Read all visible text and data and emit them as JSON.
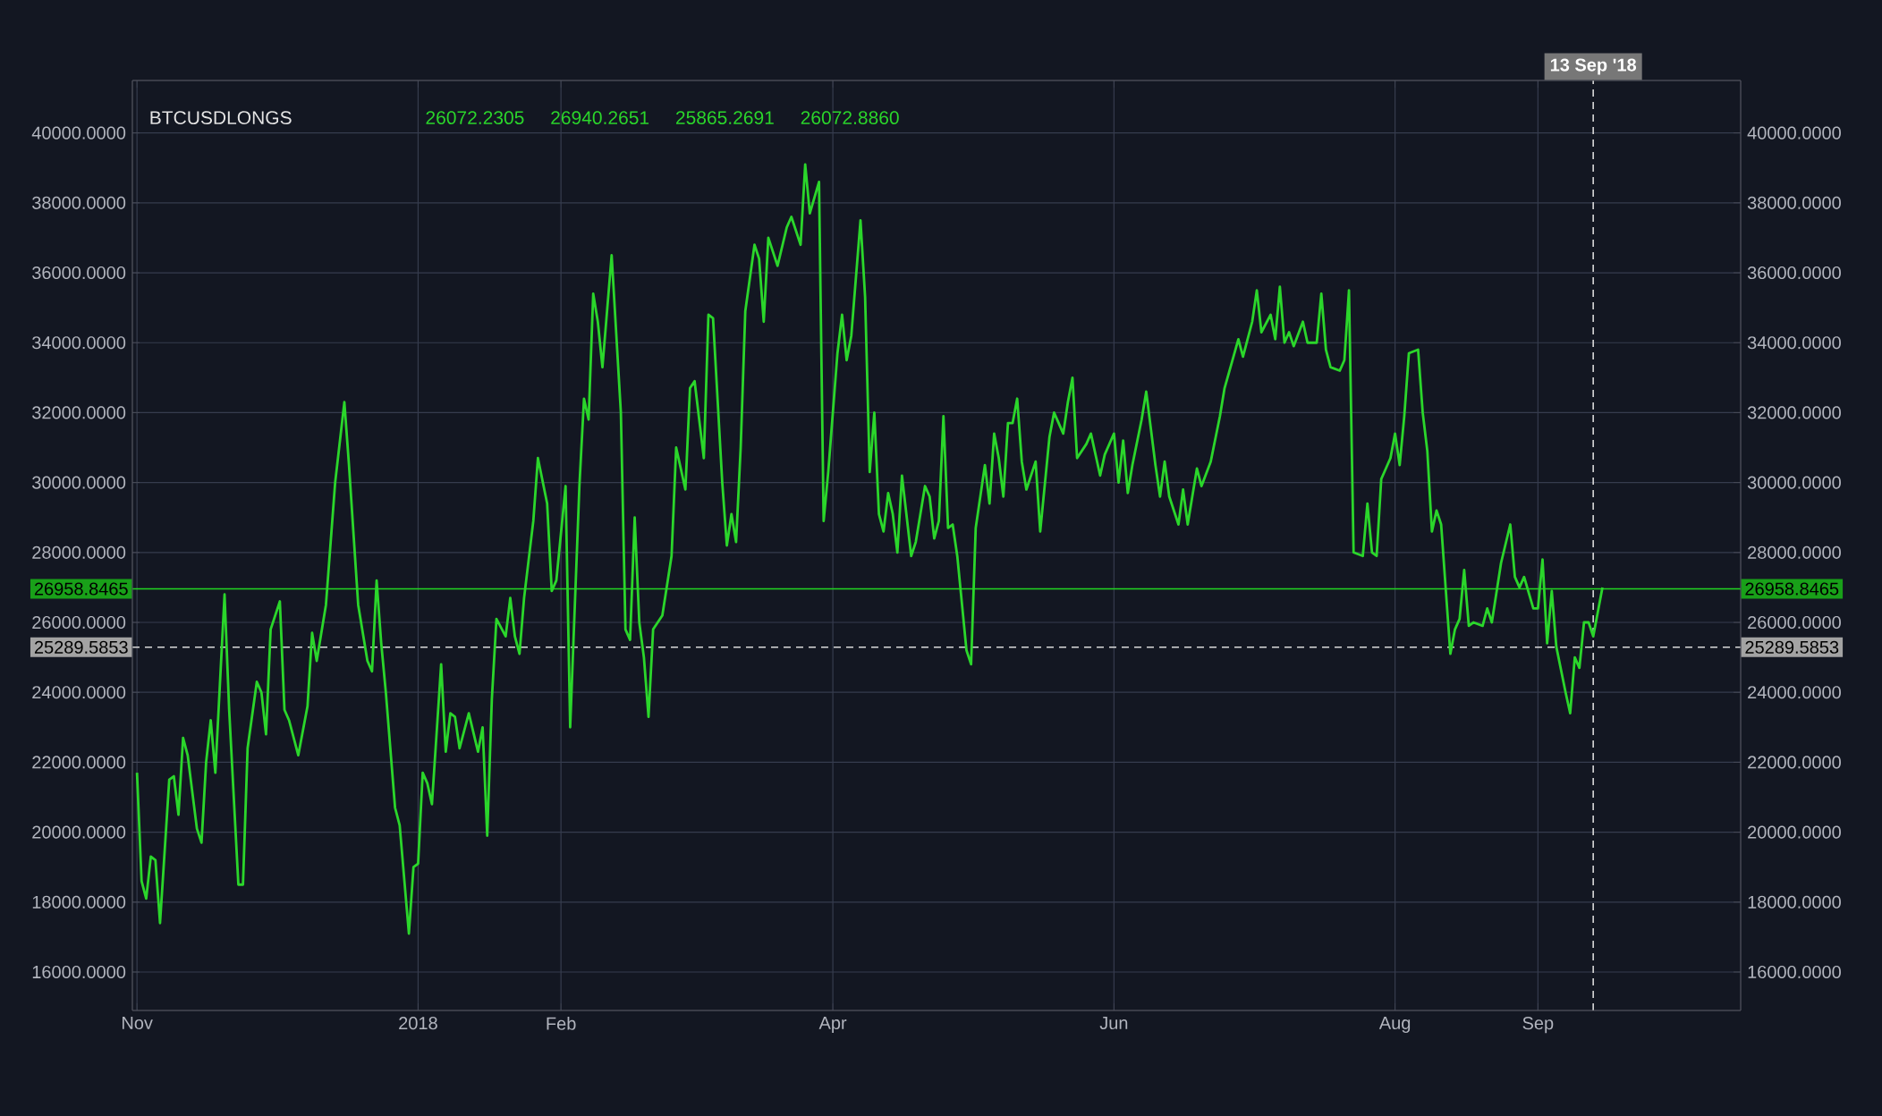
{
  "chart_data": {
    "type": "line",
    "title": "BTCUSDLONGS",
    "annotations": [
      "26072.2305",
      "26940.2651",
      "25865.2691",
      "26072.8860"
    ],
    "xlim": [
      "2017-10-31",
      "2018-10-15"
    ],
    "xticks": [
      {
        "value": "2017-11-01",
        "label": "Nov"
      },
      {
        "value": "2018-01-01",
        "label": "2018"
      },
      {
        "value": "2018-02-01",
        "label": "Feb"
      },
      {
        "value": "2018-04-01",
        "label": "Apr"
      },
      {
        "value": "2018-06-01",
        "label": "Jun"
      },
      {
        "value": "2018-08-01",
        "label": "Aug"
      },
      {
        "value": "2018-09-01",
        "label": "Sep"
      }
    ],
    "ylim": [
      14900,
      41500
    ],
    "yticks": [
      {
        "value": 16000,
        "label": "16000.0000"
      },
      {
        "value": 18000,
        "label": "18000.0000"
      },
      {
        "value": 20000,
        "label": "20000.0000"
      },
      {
        "value": 22000,
        "label": "22000.0000"
      },
      {
        "value": 24000,
        "label": "24000.0000"
      },
      {
        "value": 26000,
        "label": "26000.0000"
      },
      {
        "value": 28000,
        "label": "28000.0000"
      },
      {
        "value": 30000,
        "label": "30000.0000"
      },
      {
        "value": 32000,
        "label": "32000.0000"
      },
      {
        "value": 34000,
        "label": "34000.0000"
      },
      {
        "value": 36000,
        "label": "36000.0000"
      },
      {
        "value": 38000,
        "label": "38000.0000"
      },
      {
        "value": 40000,
        "label": "40000.0000"
      }
    ],
    "y2lim": [
      14900,
      41500
    ],
    "y2ticks": [
      {
        "value": 16000,
        "label": "16000.0000"
      },
      {
        "value": 18000,
        "label": "18000.0000"
      },
      {
        "value": 20000,
        "label": "20000.0000"
      },
      {
        "value": 22000,
        "label": "22000.0000"
      },
      {
        "value": 24000,
        "label": "24000.0000"
      },
      {
        "value": 26000,
        "label": "26000.0000"
      },
      {
        "value": 28000,
        "label": "28000.0000"
      },
      {
        "value": 30000,
        "label": "30000.0000"
      },
      {
        "value": 32000,
        "label": "32000.0000"
      },
      {
        "value": 34000,
        "label": "34000.0000"
      },
      {
        "value": 36000,
        "label": "36000.0000"
      },
      {
        "value": 38000,
        "label": "38000.0000"
      },
      {
        "value": 40000,
        "label": "40000.0000"
      }
    ],
    "grid": true,
    "ref_lines": [
      {
        "axis": "y",
        "value": 26958.8465,
        "label": "26958.8465",
        "color": "#22d622",
        "line_style": "solid"
      },
      {
        "axis": "y",
        "value": 25289.5853,
        "label": "25289.5853",
        "color": "#d9d9d9",
        "line_style": "dashed"
      },
      {
        "axis": "x",
        "value": "2018-09-13",
        "label": "13 Sep '18",
        "color": "#d9d9d9",
        "line_style": "dashed"
      }
    ],
    "series": [
      {
        "color": "#2bd62b",
        "x": [
          "2017-11-01",
          "2017-11-02",
          "2017-11-03",
          "2017-11-04",
          "2017-11-05",
          "2017-11-06",
          "2017-11-08",
          "2017-11-09",
          "2017-11-10",
          "2017-11-11",
          "2017-11-12",
          "2017-11-14",
          "2017-11-15",
          "2017-11-16",
          "2017-11-17",
          "2017-11-18",
          "2017-11-20",
          "2017-11-21",
          "2017-11-23",
          "2017-11-24",
          "2017-11-25",
          "2017-11-27",
          "2017-11-28",
          "2017-11-29",
          "2017-11-30",
          "2017-12-02",
          "2017-12-03",
          "2017-12-04",
          "2017-12-06",
          "2017-12-08",
          "2017-12-09",
          "2017-12-10",
          "2017-12-12",
          "2017-12-14",
          "2017-12-16",
          "2017-12-17",
          "2017-12-19",
          "2017-12-21",
          "2017-12-22",
          "2017-12-23",
          "2017-12-24",
          "2017-12-25",
          "2017-12-27",
          "2017-12-28",
          "2017-12-30",
          "2017-12-31",
          "2018-01-01",
          "2018-01-02",
          "2018-01-03",
          "2018-01-04",
          "2018-01-06",
          "2018-01-07",
          "2018-01-08",
          "2018-01-09",
          "2018-01-10",
          "2018-01-12",
          "2018-01-14",
          "2018-01-15",
          "2018-01-16",
          "2018-01-17",
          "2018-01-18",
          "2018-01-20",
          "2018-01-21",
          "2018-01-22",
          "2018-01-23",
          "2018-01-24",
          "2018-01-26",
          "2018-01-27",
          "2018-01-29",
          "2018-01-30",
          "2018-01-31",
          "2018-02-02",
          "2018-02-03",
          "2018-02-05",
          "2018-02-06",
          "2018-02-07",
          "2018-02-08",
          "2018-02-09",
          "2018-02-10",
          "2018-02-12",
          "2018-02-14",
          "2018-02-15",
          "2018-02-16",
          "2018-02-17",
          "2018-02-18",
          "2018-02-19",
          "2018-02-20",
          "2018-02-21",
          "2018-02-23",
          "2018-02-25",
          "2018-02-26",
          "2018-02-28",
          "2018-03-01",
          "2018-03-02",
          "2018-03-04",
          "2018-03-05",
          "2018-03-06",
          "2018-03-08",
          "2018-03-09",
          "2018-03-10",
          "2018-03-11",
          "2018-03-12",
          "2018-03-13",
          "2018-03-15",
          "2018-03-16",
          "2018-03-17",
          "2018-03-18",
          "2018-03-20",
          "2018-03-22",
          "2018-03-23",
          "2018-03-25",
          "2018-03-26",
          "2018-03-27",
          "2018-03-29",
          "2018-03-30",
          "2018-03-31",
          "2018-04-02",
          "2018-04-03",
          "2018-04-04",
          "2018-04-05",
          "2018-04-07",
          "2018-04-08",
          "2018-04-09",
          "2018-04-10",
          "2018-04-11",
          "2018-04-12",
          "2018-04-13",
          "2018-04-14",
          "2018-04-15",
          "2018-04-16",
          "2018-04-18",
          "2018-04-19",
          "2018-04-21",
          "2018-04-22",
          "2018-04-23",
          "2018-04-24",
          "2018-04-25",
          "2018-04-26",
          "2018-04-27",
          "2018-04-28",
          "2018-04-30",
          "2018-05-01",
          "2018-05-02",
          "2018-05-04",
          "2018-05-05",
          "2018-05-06",
          "2018-05-07",
          "2018-05-08",
          "2018-05-09",
          "2018-05-10",
          "2018-05-11",
          "2018-05-12",
          "2018-05-13",
          "2018-05-15",
          "2018-05-16",
          "2018-05-18",
          "2018-05-19",
          "2018-05-21",
          "2018-05-22",
          "2018-05-23",
          "2018-05-24",
          "2018-05-26",
          "2018-05-27",
          "2018-05-29",
          "2018-05-30",
          "2018-06-01",
          "2018-06-02",
          "2018-06-03",
          "2018-06-04",
          "2018-06-05",
          "2018-06-07",
          "2018-06-08",
          "2018-06-10",
          "2018-06-11",
          "2018-06-12",
          "2018-06-13",
          "2018-06-15",
          "2018-06-16",
          "2018-06-17",
          "2018-06-19",
          "2018-06-20",
          "2018-06-22",
          "2018-06-24",
          "2018-06-25",
          "2018-06-28",
          "2018-06-29",
          "2018-07-01",
          "2018-07-02",
          "2018-07-03",
          "2018-07-05",
          "2018-07-06",
          "2018-07-07",
          "2018-07-08",
          "2018-07-09",
          "2018-07-10",
          "2018-07-12",
          "2018-07-13",
          "2018-07-14",
          "2018-07-15",
          "2018-07-16",
          "2018-07-17",
          "2018-07-18",
          "2018-07-20",
          "2018-07-21",
          "2018-07-22",
          "2018-07-23",
          "2018-07-25",
          "2018-07-26",
          "2018-07-27",
          "2018-07-28",
          "2018-07-29",
          "2018-07-31",
          "2018-08-01",
          "2018-08-02",
          "2018-08-03",
          "2018-08-04",
          "2018-08-06",
          "2018-08-07",
          "2018-08-08",
          "2018-08-09",
          "2018-08-10",
          "2018-08-11",
          "2018-08-13",
          "2018-08-14",
          "2018-08-15",
          "2018-08-16",
          "2018-08-17",
          "2018-08-18",
          "2018-08-20",
          "2018-08-21",
          "2018-08-22",
          "2018-08-24",
          "2018-08-26",
          "2018-08-27",
          "2018-08-28",
          "2018-08-29",
          "2018-08-31",
          "2018-09-01",
          "2018-09-02",
          "2018-09-03",
          "2018-09-04",
          "2018-09-05",
          "2018-09-07",
          "2018-09-08",
          "2018-09-09",
          "2018-09-10",
          "2018-09-11",
          "2018-09-12",
          "2018-09-13",
          "2018-09-15"
        ],
        "values": [
          21700,
          18600,
          18100,
          19300,
          19200,
          17400,
          21500,
          21600,
          20500,
          22700,
          22200,
          20100,
          19700,
          22000,
          23200,
          21700,
          26800,
          23500,
          18500,
          18500,
          22400,
          24300,
          24000,
          22800,
          25800,
          26600,
          23500,
          23200,
          22200,
          23600,
          25700,
          24900,
          26500,
          30000,
          32300,
          30500,
          26500,
          24900,
          24600,
          27200,
          25400,
          24000,
          20700,
          20200,
          17100,
          19000,
          19100,
          21700,
          21400,
          20800,
          24800,
          22300,
          23400,
          23300,
          22400,
          23400,
          22300,
          23000,
          19900,
          23800,
          26100,
          25600,
          26700,
          25600,
          25100,
          26700,
          28900,
          30700,
          29400,
          26900,
          27200,
          29900,
          23000,
          29900,
          32400,
          31800,
          35400,
          34600,
          33300,
          36500,
          32000,
          25800,
          25500,
          29000,
          26000,
          25000,
          23300,
          25800,
          26200,
          27900,
          31000,
          29800,
          32700,
          32900,
          30700,
          34800,
          34700,
          30000,
          28200,
          29100,
          28300,
          31000,
          34900,
          36800,
          36400,
          34600,
          37000,
          36200,
          37300,
          37600,
          36800,
          39100,
          37700,
          38600,
          28900,
          30300,
          33700,
          34800,
          33500,
          34200,
          37500,
          35300,
          30300,
          32000,
          29100,
          28600,
          29700,
          29100,
          28000,
          30200,
          27900,
          28300,
          29900,
          29600,
          28400,
          28900,
          31900,
          28700,
          28800,
          27900,
          25200,
          24800,
          28700,
          30500,
          29400,
          31400,
          30700,
          29600,
          31700,
          31700,
          32400,
          30600,
          29800,
          30600,
          28600,
          31300,
          32000,
          31400,
          32300,
          33000,
          30700,
          31100,
          31400,
          30200,
          30800,
          31400,
          30000,
          31200,
          29700,
          30500,
          31800,
          32600,
          30500,
          29600,
          30600,
          29600,
          28800,
          29800,
          28800,
          30400,
          29900,
          30600,
          31900,
          32700,
          34100,
          33600,
          34600,
          35500,
          34300,
          34800,
          34100,
          35600,
          34000,
          34300,
          33900,
          34600,
          34000,
          34000,
          34000,
          35400,
          33800,
          33300,
          33200,
          33500,
          35500,
          28000,
          27900,
          29400,
          28000,
          27900,
          30100,
          30700,
          31400,
          30500,
          31900,
          33700,
          33800,
          32000,
          30900,
          28600,
          29200,
          28800,
          25100,
          25800,
          26100,
          27500,
          25900,
          26000,
          25900,
          26400,
          26000,
          27700,
          28800,
          27300,
          27000,
          27300,
          26400,
          26400,
          27800,
          25400,
          26900,
          25300,
          24000,
          23400,
          25000,
          24700,
          26000,
          26000,
          25600,
          27000
        ]
      }
    ]
  }
}
